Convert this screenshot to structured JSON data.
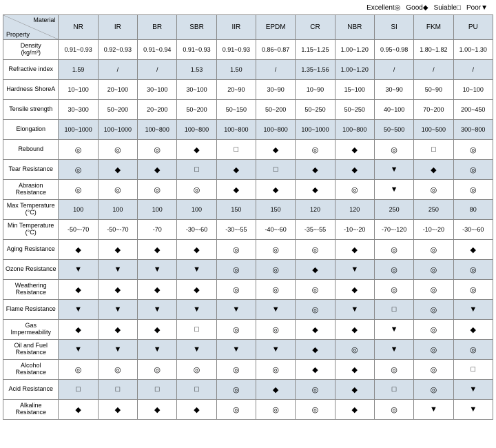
{
  "legend": [
    {
      "label": "Excellent",
      "sym": "◎"
    },
    {
      "label": "Good",
      "sym": "◆"
    },
    {
      "label": "Suiable",
      "sym": "□"
    },
    {
      "label": "Poor",
      "sym": "▼"
    }
  ],
  "corner": {
    "top": "Material",
    "bottom": "Property"
  },
  "columns": [
    "NR",
    "IR",
    "BR",
    "SBR",
    "IIR",
    "EPDM",
    "CR",
    "NBR",
    "SI",
    "FKM",
    "PU"
  ],
  "symbols": {
    "excellent": "◎",
    "good": "◆",
    "suitable": "□",
    "poor": "▼"
  },
  "shaded_rows": [
    1,
    4,
    6,
    8,
    11,
    13,
    15,
    17
  ],
  "rows": [
    {
      "label": "Density<br>(kg/m³)",
      "cells": [
        "0.91~0.93",
        "0.92~0.93",
        "0.91~0.94",
        "0.91~0.93",
        "0.91~0.93",
        "0.86~0.87",
        "1.15~1.25",
        "1.00~1.20",
        "0.95~0.98",
        "1.80~1.82",
        "1.00~1.30"
      ]
    },
    {
      "label": "Refractive index",
      "cells": [
        "1.59",
        "/",
        "/",
        "1.53",
        "1.50",
        "/",
        "1.35~1.56",
        "1.00~1.20",
        "/",
        "/",
        "/"
      ]
    },
    {
      "label": "Hardness ShoreA",
      "cells": [
        "10~100",
        "20~100",
        "30~100",
        "30~100",
        "20~90",
        "30~90",
        "10~90",
        "15~100",
        "30~90",
        "50~90",
        "10~100"
      ]
    },
    {
      "label": "Tensile strength",
      "cells": [
        "30~300",
        "50~200",
        "20~200",
        "50~200",
        "50~150",
        "50~200",
        "50~250",
        "50~250",
        "40~100",
        "70~200",
        "200~450"
      ]
    },
    {
      "label": "Elongation",
      "cells": [
        "100~1000",
        "100~1000",
        "100~800",
        "100~800",
        "100~800",
        "100~800",
        "100~1000",
        "100~800",
        "50~500",
        "100~500",
        "300~800"
      ]
    },
    {
      "label": "Rebound",
      "cells": [
        "◎",
        "◎",
        "◎",
        "◆",
        "□",
        "◆",
        "◎",
        "◆",
        "◎",
        "□",
        "◎"
      ]
    },
    {
      "label": "Tear Resistance",
      "cells": [
        "◎",
        "◆",
        "◆",
        "□",
        "◆",
        "□",
        "◆",
        "◆",
        "▼",
        "◆",
        "◎"
      ]
    },
    {
      "label": "Abrasion<br>Resistance",
      "cells": [
        "◎",
        "◎",
        "◎",
        "◎",
        "◆",
        "◆",
        "◆",
        "◎",
        "▼",
        "◎",
        "◎"
      ]
    },
    {
      "label": "Max Temperature<br>(°C)",
      "cells": [
        "100",
        "100",
        "100",
        "100",
        "150",
        "150",
        "120",
        "120",
        "250",
        "250",
        "80"
      ]
    },
    {
      "label": "Min Temperature<br>(°C)",
      "cells": [
        "-50~-70",
        "-50~-70",
        "-70",
        "-30~-60",
        "-30~-55",
        "-40~-60",
        "-35~-55",
        "-10~-20",
        "-70~-120",
        "-10~-20",
        "-30~-60"
      ]
    },
    {
      "label": "Aging Resistance",
      "cells": [
        "◆",
        "◆",
        "◆",
        "◆",
        "◎",
        "◎",
        "◎",
        "◆",
        "◎",
        "◎",
        "◆"
      ]
    },
    {
      "label": "Ozone Resistance",
      "cells": [
        "▼",
        "▼",
        "▼",
        "▼",
        "◎",
        "◎",
        "◆",
        "▼",
        "◎",
        "◎",
        "◎"
      ]
    },
    {
      "label": "Weathering<br>Resistance",
      "cells": [
        "◆",
        "◆",
        "◆",
        "◆",
        "◎",
        "◎",
        "◎",
        "◆",
        "◎",
        "◎",
        "◎"
      ]
    },
    {
      "label": "Flame Resistance",
      "cells": [
        "▼",
        "▼",
        "▼",
        "▼",
        "▼",
        "▼",
        "◎",
        "▼",
        "□",
        "◎",
        "▼"
      ]
    },
    {
      "label": "Gas<br>Impermeability",
      "cells": [
        "◆",
        "◆",
        "◆",
        "□",
        "◎",
        "◎",
        "◆",
        "◆",
        "▼",
        "◎",
        "◆"
      ]
    },
    {
      "label": "Oil and Fuel<br>Resistance",
      "cells": [
        "▼",
        "▼",
        "▼",
        "▼",
        "▼",
        "▼",
        "◆",
        "◎",
        "▼",
        "◎",
        "◎"
      ]
    },
    {
      "label": "Alcohol Resistance",
      "cells": [
        "◎",
        "◎",
        "◎",
        "◎",
        "◎",
        "◎",
        "◆",
        "◆",
        "◎",
        "◎",
        "□"
      ]
    },
    {
      "label": "Acid Resistance",
      "cells": [
        "□",
        "□",
        "□",
        "□",
        "◎",
        "◆",
        "◎",
        "◆",
        "□",
        "◎",
        "▼"
      ]
    },
    {
      "label": "Alkaline<br>Resistance",
      "cells": [
        "◆",
        "◆",
        "◆",
        "◆",
        "◎",
        "◎",
        "◎",
        "◆",
        "◎",
        "▼",
        "▼"
      ]
    }
  ],
  "colors": {
    "header_bg": "#d5e0ea",
    "border": "#888888",
    "text": "#000000"
  }
}
